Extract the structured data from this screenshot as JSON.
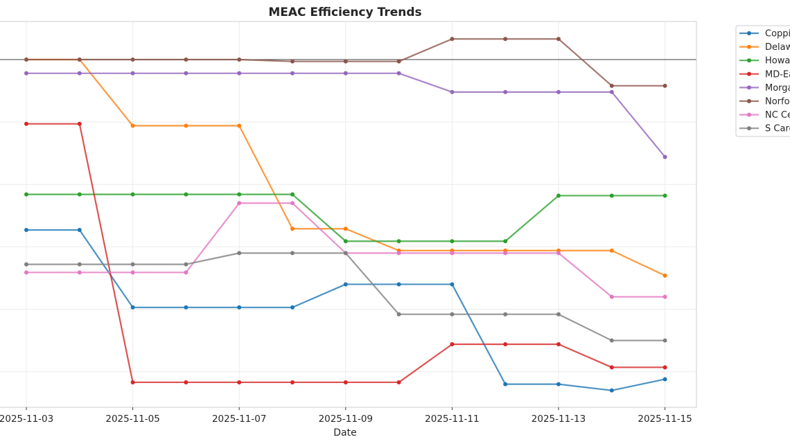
{
  "chart_data": {
    "type": "line",
    "title": "MEAC Efficiency Trends",
    "xlabel": "Date",
    "ylabel": "",
    "grid": true,
    "legend_placement": "outside-top-right",
    "ylim": [
      0.443,
      1.061
    ],
    "reference_line": 1.0,
    "x": [
      "2025-11-03",
      "2025-11-04",
      "2025-11-05",
      "2025-11-06",
      "2025-11-07",
      "2025-11-08",
      "2025-11-09",
      "2025-11-10",
      "2025-11-11",
      "2025-11-12",
      "2025-11-13",
      "2025-11-14",
      "2025-11-15"
    ],
    "xticks": [
      "2025-11-03",
      "2025-11-05",
      "2025-11-07",
      "2025-11-09",
      "2025-11-11",
      "2025-11-13",
      "2025-11-15"
    ],
    "series": [
      {
        "name": "Coppin State",
        "color": "#1f77b4",
        "values": [
          0.727,
          0.727,
          0.603,
          0.603,
          0.603,
          0.603,
          0.64,
          0.64,
          0.64,
          0.48,
          0.48,
          0.47,
          0.488
        ]
      },
      {
        "name": "Delaware State",
        "color": "#ff7f0e",
        "values": [
          1.0,
          1.0,
          0.894,
          0.894,
          0.894,
          0.729,
          0.729,
          0.694,
          0.694,
          0.694,
          0.694,
          0.694,
          0.654
        ]
      },
      {
        "name": "Howard",
        "color": "#2ca02c",
        "values": [
          0.784,
          0.784,
          0.784,
          0.784,
          0.784,
          0.784,
          0.709,
          0.709,
          0.709,
          0.709,
          0.782,
          0.782,
          0.782
        ]
      },
      {
        "name": "MD-Eastern Shore",
        "color": "#d62728",
        "values": [
          0.897,
          0.897,
          0.483,
          0.483,
          0.483,
          0.483,
          0.483,
          0.483,
          0.544,
          0.544,
          0.544,
          0.507,
          0.507
        ]
      },
      {
        "name": "Morgan State",
        "color": "#9467bd",
        "values": [
          0.978,
          0.978,
          0.978,
          0.978,
          0.978,
          0.978,
          0.978,
          0.978,
          0.948,
          0.948,
          0.948,
          0.948,
          0.844
        ]
      },
      {
        "name": "Norfolk State",
        "color": "#8c564b",
        "values": [
          1.0,
          1.0,
          1.0,
          1.0,
          1.0,
          0.997,
          0.997,
          0.997,
          1.033,
          1.033,
          1.033,
          0.958,
          0.958
        ]
      },
      {
        "name": "NC Central",
        "color": "#e377c2",
        "values": [
          0.659,
          0.659,
          0.659,
          0.659,
          0.77,
          0.77,
          0.69,
          0.69,
          0.69,
          0.69,
          0.69,
          0.62,
          0.62
        ]
      },
      {
        "name": "S Carolina State",
        "color": "#7f7f7f",
        "values": [
          0.672,
          0.672,
          0.672,
          0.672,
          0.69,
          0.69,
          0.69,
          0.592,
          0.592,
          0.592,
          0.592,
          0.55,
          0.55
        ]
      }
    ]
  }
}
